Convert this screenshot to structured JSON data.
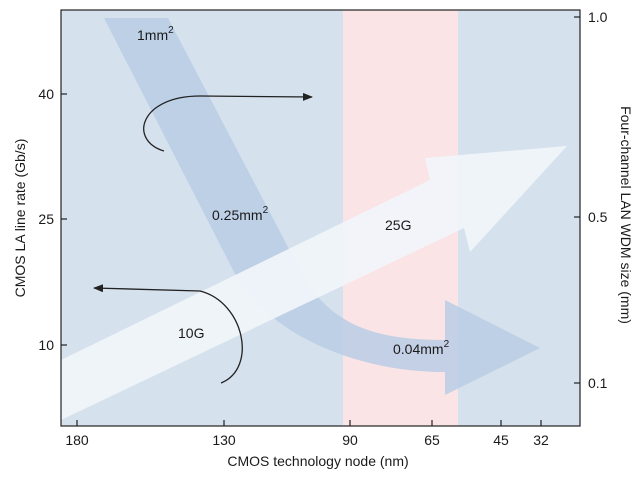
{
  "figure": {
    "x_axis": {
      "title": "CMOS technology node (nm)",
      "ticks": [
        "180",
        "130",
        "90",
        "65",
        "45",
        "32"
      ]
    },
    "y_axis_left": {
      "title": "CMOS LA line rate (Gb/s)",
      "ticks": [
        "40",
        "25",
        "10"
      ]
    },
    "y_axis_right": {
      "title": "Four-channel LAN WDM size (mm)",
      "ticks": [
        "1.0",
        "0.5",
        "0.1"
      ]
    },
    "annotations": {
      "area_1": {
        "base": "1mm",
        "sup": "2"
      },
      "area_025": {
        "base": "0.25mm",
        "sup": "2"
      },
      "area_004": {
        "base": "0.04mm",
        "sup": "2"
      },
      "rate_25g": "25G",
      "rate_10g": "10G"
    },
    "colors": {
      "plot_bg": "#d6e1ee",
      "highlight_band": "#fbe4e6",
      "dark_arrow": "#b9cde4",
      "light_arrow": "#f1f5fa",
      "axis": "#222222"
    }
  }
}
